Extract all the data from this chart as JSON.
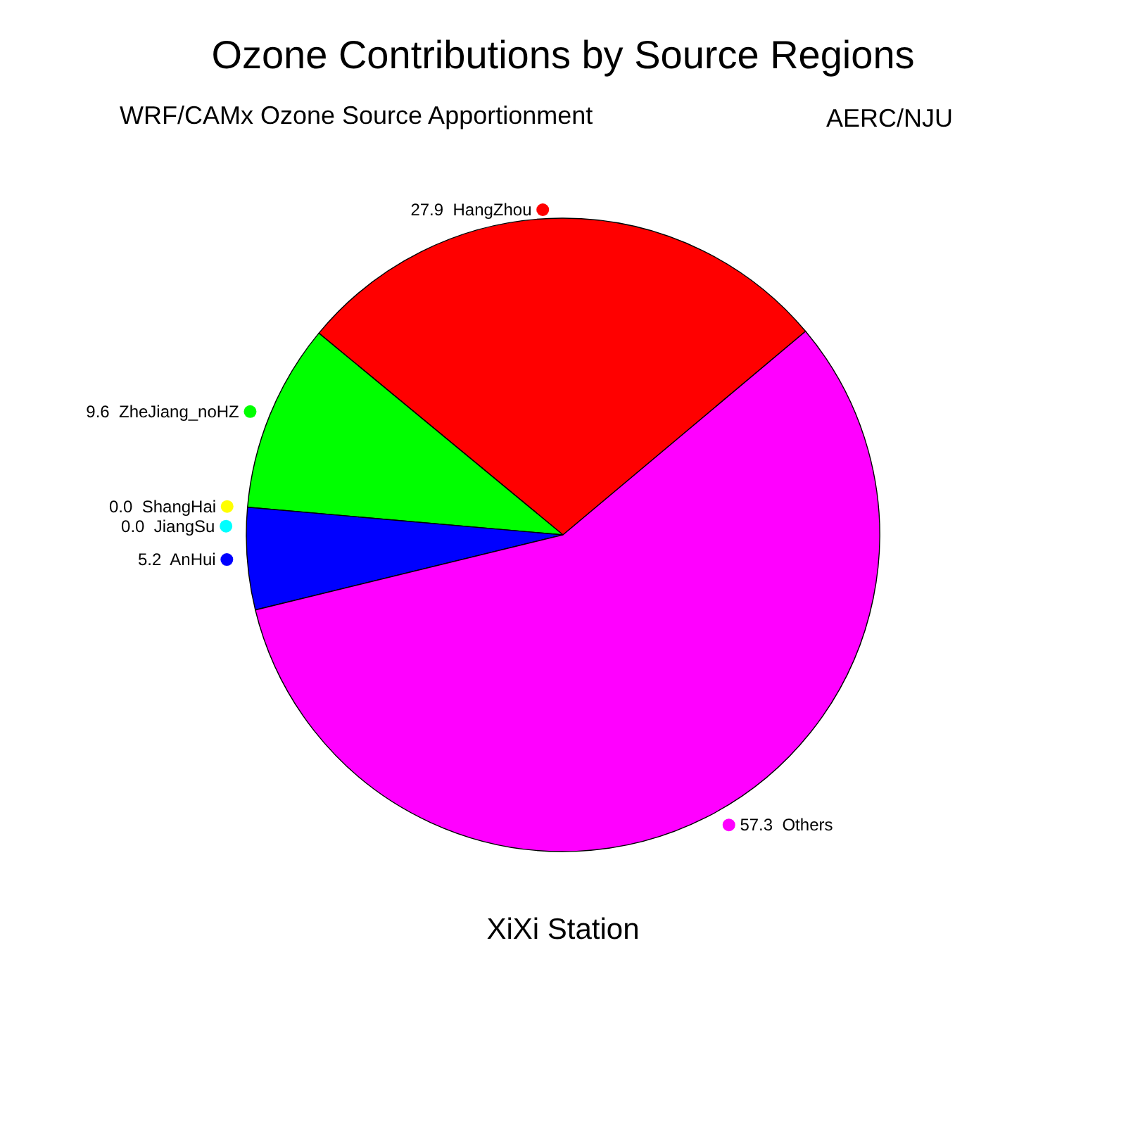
{
  "chart_data": {
    "type": "pie",
    "title": "Ozone Contributions by Source Regions",
    "subtitle": "WRF/CAMx Ozone Source Apportionment",
    "annotations": [
      "AERC/NJU",
      "XiXi Station"
    ],
    "categories": [
      "27.9  HangZhou",
      "9.6  ZheJiang_noHZ",
      "0.0  ShangHai",
      "0.0  JiangSu",
      "5.2  AnHui",
      "57.3  Others"
    ],
    "values": [
      27.9,
      9.6,
      0.0,
      0.0,
      5.2,
      57.3
    ],
    "colors": [
      "#ff0000",
      "#00ff00",
      "#ffff00",
      "#00ffff",
      "#0000ff",
      "#ff00ff"
    ],
    "legend": "left"
  }
}
